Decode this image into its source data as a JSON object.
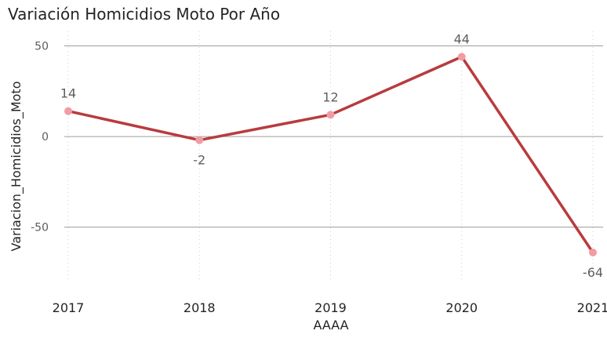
{
  "chart_data": {
    "type": "line",
    "title": "Variación Homicidios Moto Por Año",
    "xlabel": "AAAA",
    "ylabel": "Variacion_Homicidios_Moto",
    "categories": [
      "2017",
      "2018",
      "2019",
      "2020",
      "2021"
    ],
    "series": [
      {
        "values": [
          14,
          -2,
          12,
          44,
          -64
        ]
      }
    ],
    "data_labels": [
      "14",
      "-2",
      "12",
      "44",
      "-64"
    ],
    "yticks": [
      50,
      0,
      -50
    ],
    "ytick_labels": [
      "50",
      "0",
      "-50"
    ],
    "ylim": [
      -80,
      58
    ],
    "grid": true,
    "colors": {
      "line": "#b83b3e",
      "marker": "#f19ca3",
      "grid": "#9d9d9d",
      "vgrid": "#cfcfcf"
    }
  }
}
